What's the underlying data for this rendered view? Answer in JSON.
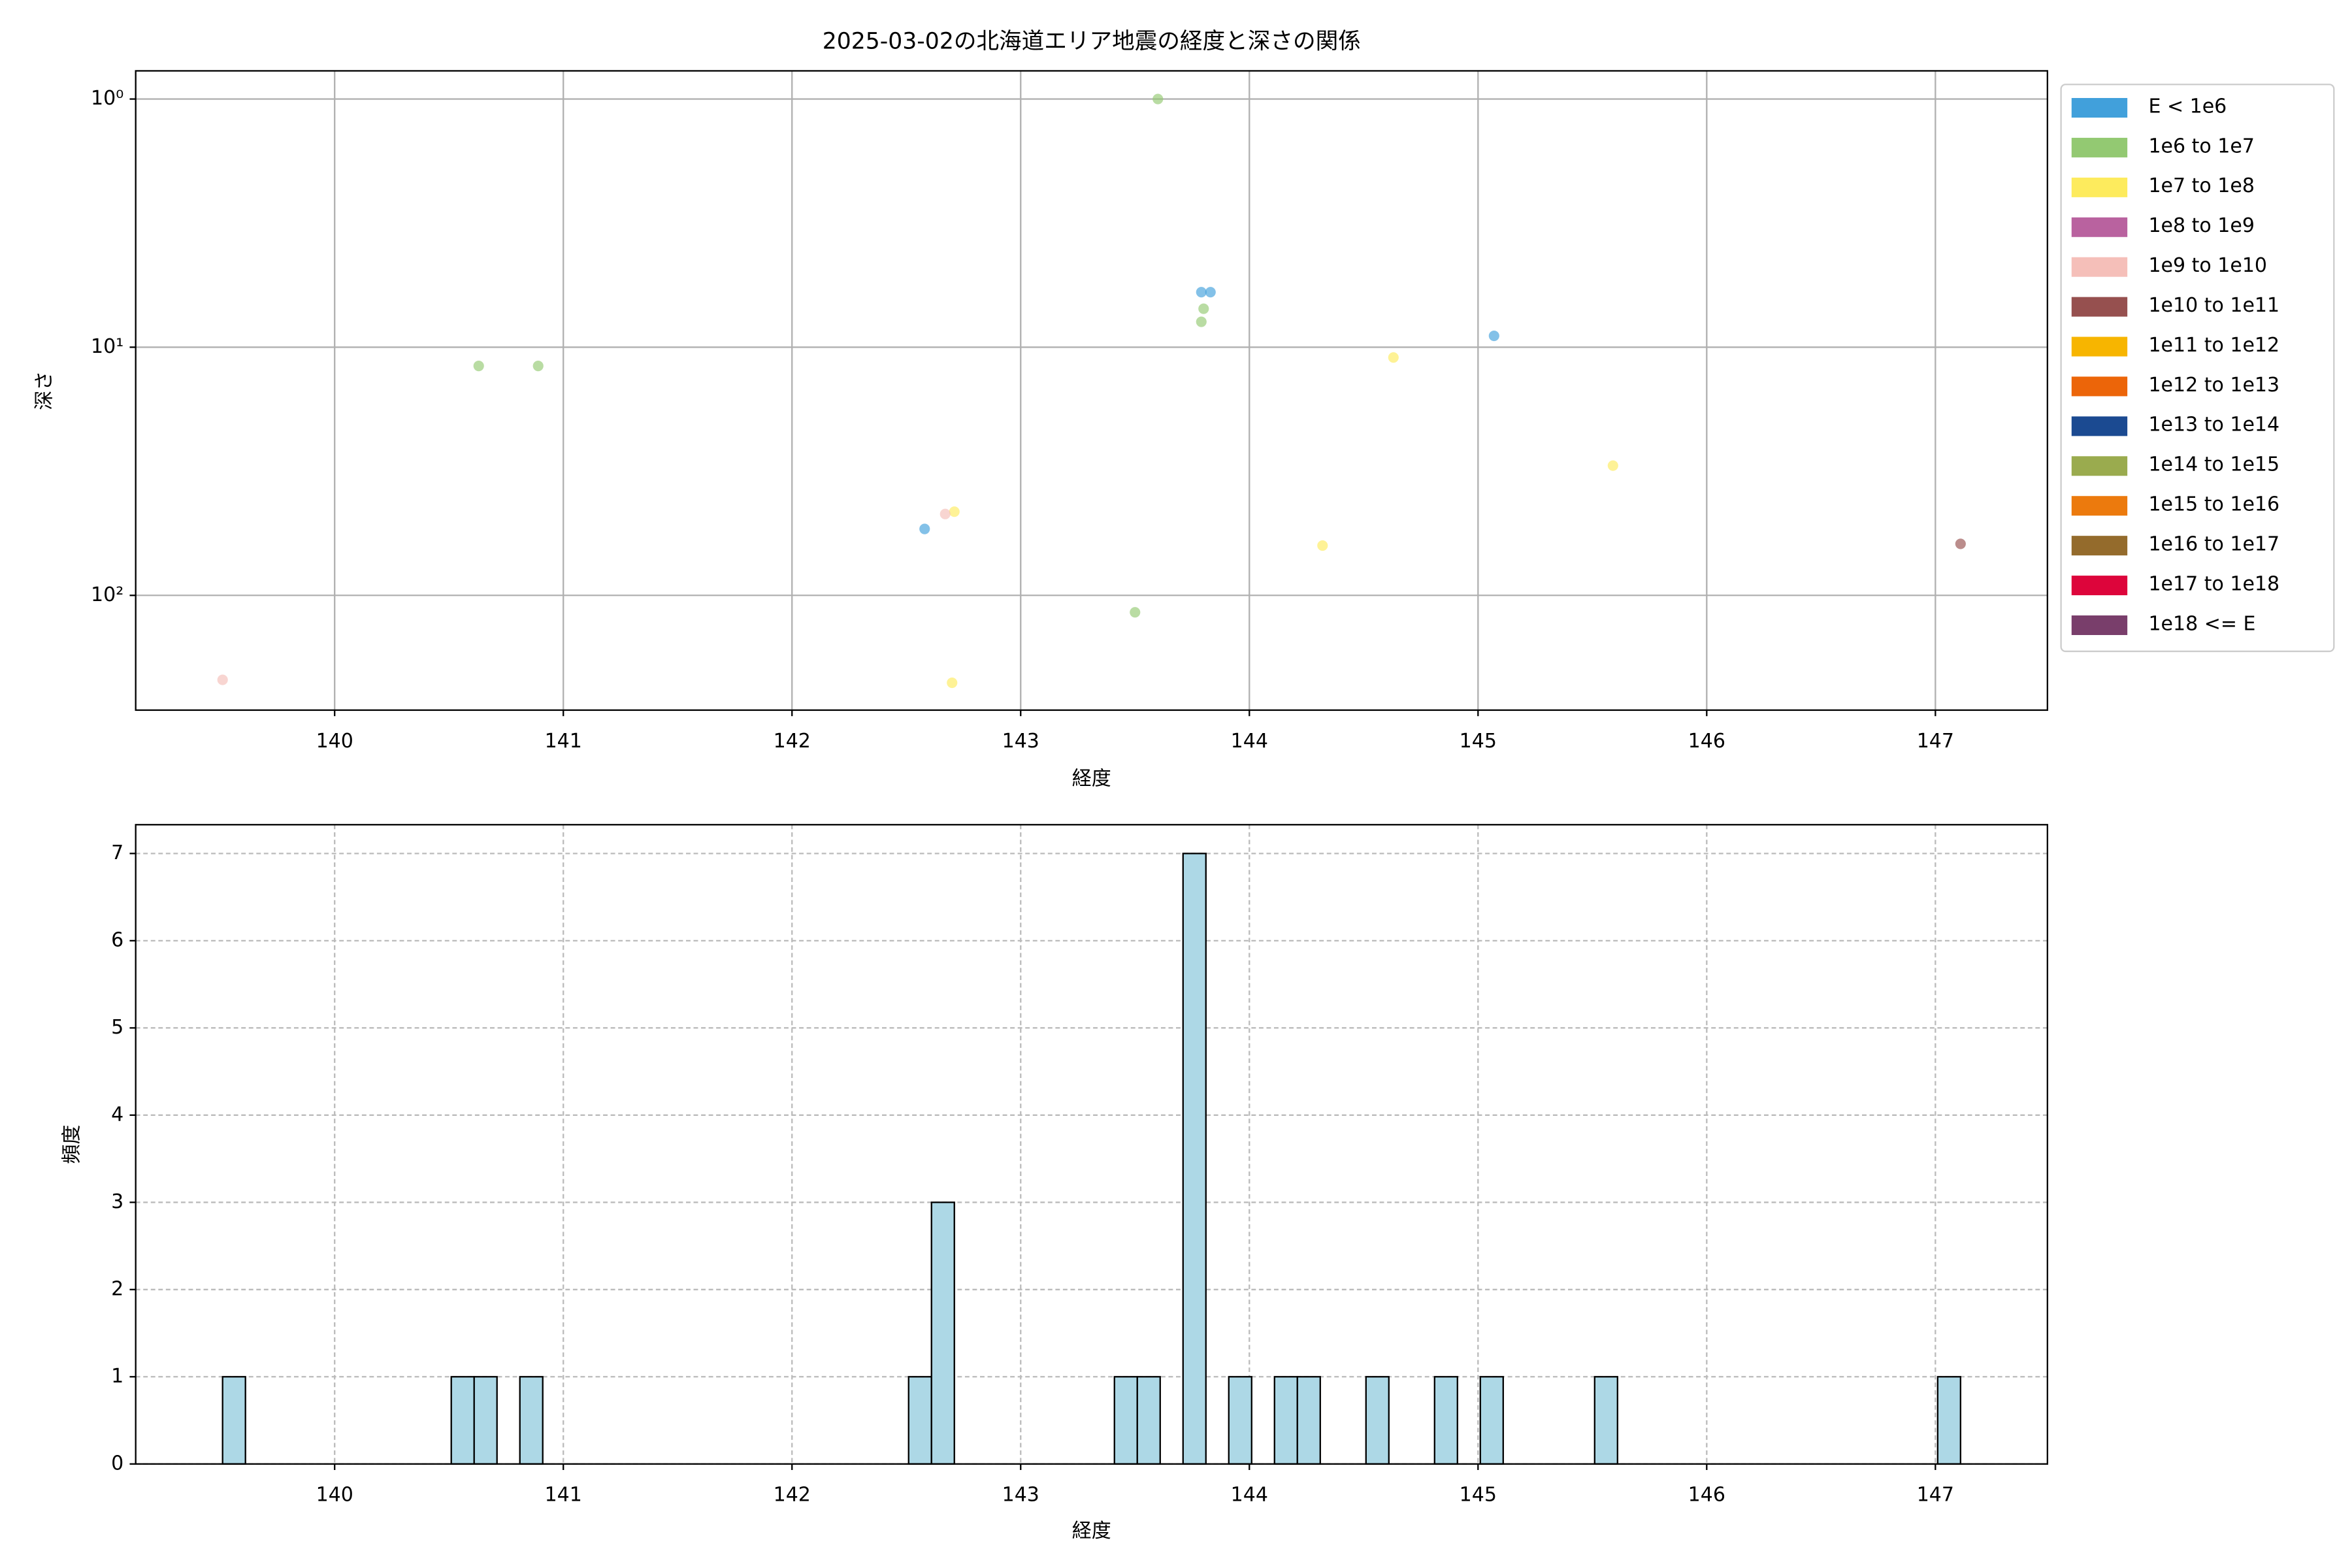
{
  "chart_data": [
    {
      "type": "scatter",
      "title": "2025-03-02の北海道エリア地震の経度と深さの関係",
      "xlabel": "経度",
      "ylabel": "深さ",
      "xlim": [
        139.13,
        147.49
      ],
      "xticks": [
        140,
        141,
        142,
        143,
        144,
        145,
        146,
        147
      ],
      "yscale": "log",
      "invert_y": true,
      "ylim": [
        0.77,
        290
      ],
      "yticks": [
        {
          "value": 1,
          "label": "10⁰"
        },
        {
          "value": 10,
          "label": "10¹"
        },
        {
          "value": 100,
          "label": "10²"
        }
      ],
      "grid": true,
      "legend": "right",
      "series": [
        {
          "name": "E < 1e6",
          "color": "#41a0db",
          "x": [
            143.79,
            143.83,
            145.07,
            142.58
          ],
          "y": [
            6.0,
            6.0,
            9.0,
            54
          ]
        },
        {
          "name": "1e6 to 1e7",
          "color": "#93c972",
          "x": [
            143.6,
            140.63,
            140.89,
            143.79,
            143.8,
            143.5
          ],
          "y": [
            1.0,
            11.9,
            11.9,
            7.9,
            7.0,
            117
          ]
        },
        {
          "name": "1e7 to 1e8",
          "color": "#fdeb5d",
          "x": [
            144.63,
            145.59,
            142.71,
            144.32,
            142.7
          ],
          "y": [
            11.0,
            30,
            46,
            63,
            225
          ]
        },
        {
          "name": "1e8 to 1e9",
          "color": "#b9629f",
          "x": [],
          "y": []
        },
        {
          "name": "1e9 to 1e10",
          "color": "#f5bfb9",
          "x": [
            142.67,
            139.51
          ],
          "y": [
            47,
            219
          ]
        },
        {
          "name": "1e10 to 1e11",
          "color": "#96504f",
          "x": [
            147.11
          ],
          "y": [
            62
          ]
        },
        {
          "name": "1e11 to 1e12",
          "color": "#f7b500",
          "x": [],
          "y": []
        },
        {
          "name": "1e12 to 1e13",
          "color": "#ec6509",
          "x": [],
          "y": []
        },
        {
          "name": "1e13 to 1e14",
          "color": "#1b4a91",
          "x": [],
          "y": []
        },
        {
          "name": "1e14 to 1e15",
          "color": "#9aab4e",
          "x": [],
          "y": []
        },
        {
          "name": "1e15 to 1e16",
          "color": "#ec7a0d",
          "x": [],
          "y": []
        },
        {
          "name": "1e16 to 1e17",
          "color": "#946b2c",
          "x": [],
          "y": []
        },
        {
          "name": "1e17 to 1e18",
          "color": "#dd053b",
          "x": [],
          "y": []
        },
        {
          "name": "1e18 <= E",
          "color": "#793e6b",
          "x": [],
          "y": []
        }
      ]
    },
    {
      "type": "histogram",
      "xlabel": "経度",
      "ylabel": "頻度",
      "xlim": [
        139.13,
        147.49
      ],
      "xticks": [
        140,
        141,
        142,
        143,
        144,
        145,
        146,
        147
      ],
      "ylim": [
        0,
        7.33
      ],
      "yticks": [
        0,
        1,
        2,
        3,
        4,
        5,
        6,
        7
      ],
      "grid": true,
      "grid_style": "dashed",
      "color": "#add8e6",
      "edgecolor": "#000000",
      "bins": [
        139.51,
        139.61,
        139.71,
        139.81,
        139.91,
        140.01,
        140.11,
        140.21,
        140.31,
        140.41,
        140.51,
        140.61,
        140.71,
        140.81,
        140.91,
        141.01,
        141.11,
        141.21,
        141.31,
        141.41,
        141.51,
        141.61,
        141.71,
        141.81,
        141.91,
        142.01,
        142.11,
        142.21,
        142.31,
        142.41,
        142.51,
        142.61,
        142.71,
        142.81,
        142.91,
        143.01,
        143.11,
        143.21,
        143.31,
        143.41,
        143.51,
        143.61,
        143.71,
        143.81,
        143.91,
        144.01,
        144.11,
        144.21,
        144.31,
        144.41,
        144.51,
        144.61,
        144.71,
        144.81,
        144.91,
        145.01,
        145.11,
        145.21,
        145.31,
        145.41,
        145.51,
        145.61,
        145.71,
        145.81,
        145.91,
        146.01,
        146.11,
        146.21,
        146.31,
        146.41,
        146.51,
        146.61,
        146.71,
        146.81,
        146.91,
        147.01,
        147.11
      ],
      "counts": [
        1,
        0,
        0,
        0,
        0,
        0,
        0,
        0,
        0,
        0,
        1,
        1,
        0,
        1,
        0,
        0,
        0,
        0,
        0,
        0,
        0,
        0,
        0,
        0,
        0,
        0,
        0,
        0,
        0,
        0,
        1,
        3,
        0,
        0,
        0,
        0,
        0,
        0,
        0,
        1,
        1,
        0,
        7,
        0,
        1,
        0,
        1,
        1,
        0,
        0,
        1,
        0,
        0,
        1,
        0,
        1,
        0,
        0,
        0,
        0,
        1,
        0,
        0,
        0,
        0,
        0,
        0,
        0,
        0,
        0,
        0,
        0,
        0,
        0,
        0,
        1
      ]
    }
  ]
}
